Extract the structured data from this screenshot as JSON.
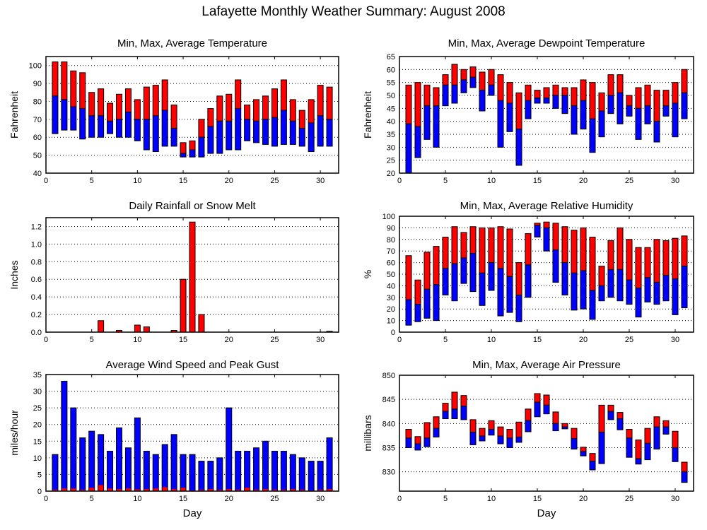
{
  "page_title": "Lafayette Monthly Weather Summary: August 2008",
  "colors": {
    "max_color": "#ff0000",
    "min_color": "#0000ff",
    "outline": "#000000"
  },
  "chart_data": [
    {
      "id": "temperature",
      "type": "bar",
      "subtype": "floating-range",
      "title": "Min, Max, Average Temperature",
      "xlabel": "",
      "ylabel": "Fahrenheit",
      "xlim": [
        0,
        32
      ],
      "ylim": [
        40,
        105
      ],
      "xticks": [
        0,
        5,
        10,
        15,
        20,
        25,
        30
      ],
      "yticks": [
        40,
        50,
        60,
        70,
        80,
        90,
        100
      ],
      "grid": true,
      "x": [
        1,
        2,
        3,
        4,
        5,
        6,
        7,
        8,
        9,
        10,
        11,
        12,
        13,
        14,
        15,
        16,
        17,
        18,
        19,
        20,
        21,
        22,
        23,
        24,
        25,
        26,
        27,
        28,
        29,
        30,
        31
      ],
      "series": [
        {
          "name": "max",
          "values": [
            102,
            102,
            97,
            96,
            85,
            87,
            79,
            84,
            87,
            81,
            88,
            89,
            92,
            78,
            57,
            58,
            70,
            76,
            83,
            84,
            92,
            78,
            81,
            83,
            87,
            92,
            81,
            75,
            81,
            89,
            88
          ]
        },
        {
          "name": "avg",
          "values": [
            83,
            81,
            77,
            76,
            72,
            72,
            69,
            70,
            74,
            70,
            70,
            72,
            75,
            65,
            51,
            53,
            60,
            66,
            69,
            69,
            76,
            70,
            69,
            70,
            71,
            75,
            69,
            65,
            68,
            72,
            70
          ]
        },
        {
          "name": "min",
          "values": [
            62,
            64,
            64,
            59,
            60,
            60,
            62,
            60,
            60,
            58,
            53,
            52,
            55,
            55,
            49,
            49,
            49,
            51,
            51,
            53,
            53,
            58,
            57,
            56,
            55,
            56,
            56,
            55,
            52,
            55,
            55
          ]
        }
      ]
    },
    {
      "id": "dewpoint",
      "type": "bar",
      "subtype": "floating-range",
      "title": "Min, Max, Average Dewpoint Temperature",
      "xlabel": "",
      "ylabel": "Fahrenheit",
      "xlim": [
        0,
        32
      ],
      "ylim": [
        20,
        65
      ],
      "xticks": [
        0,
        5,
        10,
        15,
        20,
        25,
        30
      ],
      "yticks": [
        20,
        25,
        30,
        35,
        40,
        45,
        50,
        55,
        60,
        65
      ],
      "grid": true,
      "x": [
        1,
        2,
        3,
        4,
        5,
        6,
        7,
        8,
        9,
        10,
        11,
        12,
        13,
        14,
        15,
        16,
        17,
        18,
        19,
        20,
        21,
        22,
        23,
        24,
        25,
        26,
        27,
        28,
        29,
        30,
        31
      ],
      "series": [
        {
          "name": "max",
          "values": [
            54,
            55,
            54,
            53,
            58,
            62,
            60,
            61,
            59,
            60,
            58,
            55,
            51,
            54,
            52,
            53,
            54,
            53,
            53,
            56,
            55,
            51,
            58,
            58,
            50,
            53,
            54,
            52,
            52,
            55,
            60
          ]
        },
        {
          "name": "avg",
          "values": [
            39,
            38,
            46,
            46,
            54,
            54,
            56,
            57,
            52,
            54,
            48,
            47,
            37,
            48,
            49,
            49,
            50,
            50,
            46,
            48,
            41,
            44,
            50,
            51,
            46,
            45,
            46,
            40,
            46,
            47,
            51
          ]
        },
        {
          "name": "min",
          "values": [
            20,
            26,
            33,
            30,
            46,
            47,
            51,
            53,
            44,
            50,
            30,
            36,
            23,
            41,
            47,
            47,
            45,
            43,
            35,
            37,
            28,
            34,
            43,
            39,
            42,
            33,
            39,
            32,
            42,
            34,
            41
          ]
        }
      ]
    },
    {
      "id": "rainfall",
      "type": "bar",
      "title": "Daily Rainfall or Snow Melt",
      "xlabel": "",
      "ylabel": "Inches",
      "xlim": [
        0,
        32
      ],
      "ylim": [
        0,
        1.3
      ],
      "xticks": [
        0,
        5,
        10,
        15,
        20,
        25,
        30
      ],
      "yticks": [
        "0.0",
        "0.2",
        "0.4",
        "0.6",
        "0.8",
        "1.0",
        "1.2"
      ],
      "grid": true,
      "x": [
        6,
        8,
        10,
        11,
        14,
        15,
        16,
        17,
        31
      ],
      "values": [
        0.13,
        0.02,
        0.08,
        0.06,
        0.02,
        0.6,
        1.25,
        0.2,
        0.01
      ]
    },
    {
      "id": "humidity",
      "type": "bar",
      "subtype": "floating-range",
      "title": "Min, Max, Average Relative Humidity",
      "xlabel": "",
      "ylabel": "%",
      "xlim": [
        0,
        32
      ],
      "ylim": [
        0,
        100
      ],
      "xticks": [
        0,
        5,
        10,
        15,
        20,
        25,
        30
      ],
      "yticks": [
        0,
        10,
        20,
        30,
        40,
        50,
        60,
        70,
        80,
        90,
        100
      ],
      "grid": true,
      "x": [
        1,
        2,
        3,
        4,
        5,
        6,
        7,
        8,
        9,
        10,
        11,
        12,
        13,
        14,
        15,
        16,
        17,
        18,
        19,
        20,
        21,
        22,
        23,
        24,
        25,
        26,
        27,
        28,
        29,
        30,
        31
      ],
      "series": [
        {
          "name": "max",
          "values": [
            66,
            45,
            69,
            74,
            82,
            91,
            86,
            91,
            90,
            90,
            91,
            89,
            60,
            85,
            94,
            95,
            94,
            91,
            88,
            90,
            82,
            57,
            79,
            90,
            80,
            73,
            73,
            80,
            79,
            81,
            83
          ]
        },
        {
          "name": "avg",
          "values": [
            28,
            24,
            37,
            41,
            55,
            59,
            64,
            68,
            51,
            60,
            55,
            48,
            32,
            58,
            92,
            90,
            71,
            60,
            51,
            53,
            36,
            40,
            54,
            54,
            45,
            38,
            47,
            43,
            49,
            46,
            57
          ]
        },
        {
          "name": "min",
          "values": [
            6,
            9,
            12,
            10,
            32,
            27,
            42,
            35,
            23,
            36,
            14,
            17,
            9,
            30,
            82,
            70,
            43,
            32,
            19,
            20,
            11,
            27,
            30,
            27,
            24,
            13,
            26,
            24,
            27,
            15,
            21
          ]
        }
      ]
    },
    {
      "id": "wind",
      "type": "bar",
      "title": "Average Wind Speed and Peak Gust",
      "xlabel": "Day",
      "ylabel": "miles/hour",
      "xlim": [
        0,
        32
      ],
      "ylim": [
        0,
        35
      ],
      "xticks": [
        0,
        5,
        10,
        15,
        20,
        25,
        30
      ],
      "yticks": [
        0,
        5,
        10,
        15,
        20,
        25,
        30,
        35
      ],
      "grid": true,
      "x": [
        1,
        2,
        3,
        4,
        5,
        6,
        7,
        8,
        9,
        10,
        11,
        12,
        13,
        14,
        15,
        16,
        17,
        18,
        19,
        20,
        21,
        22,
        23,
        24,
        25,
        26,
        27,
        28,
        29,
        30,
        31
      ],
      "series": [
        {
          "name": "peak gust",
          "values": [
            11,
            33,
            25,
            16,
            18,
            17,
            12,
            19,
            13,
            22,
            12,
            11,
            14,
            17,
            11,
            11,
            9,
            9,
            10,
            25,
            12,
            12,
            13,
            15,
            12,
            12,
            11,
            10,
            9,
            9,
            16
          ]
        },
        {
          "name": "average speed",
          "values": [
            0.4,
            0.8,
            0.8,
            0.4,
            1.0,
            1.8,
            0.8,
            0.6,
            0.8,
            0.5,
            0.6,
            0.8,
            1.2,
            0.6,
            1.0,
            0.2,
            0.4,
            0.6,
            0.4,
            0.6,
            0.4,
            1.0,
            0.4,
            0.6,
            0.4,
            0.4,
            0.6,
            0.4,
            0.2,
            0.4,
            0.6
          ]
        }
      ]
    },
    {
      "id": "pressure",
      "type": "bar",
      "subtype": "floating-range",
      "title": "Min, Max, Average Air Pressure",
      "xlabel": "Day",
      "ylabel": "millibars",
      "xlim": [
        0,
        32
      ],
      "ylim": [
        826,
        850
      ],
      "xticks": [
        0,
        5,
        10,
        15,
        20,
        25,
        30
      ],
      "yticks": [
        830,
        835,
        840,
        845,
        850
      ],
      "grid": true,
      "x": [
        1,
        2,
        3,
        4,
        5,
        6,
        7,
        8,
        9,
        10,
        11,
        12,
        13,
        14,
        15,
        16,
        17,
        18,
        19,
        20,
        21,
        22,
        23,
        24,
        25,
        26,
        27,
        28,
        29,
        30,
        31
      ],
      "series": [
        {
          "name": "max",
          "values": [
            838.8,
            837.3,
            840.2,
            841.4,
            844.2,
            846.5,
            845.8,
            840.8,
            839.0,
            840.6,
            839.3,
            838.8,
            840.3,
            843.0,
            846.2,
            845.9,
            842.4,
            840.0,
            839.0,
            835.1,
            833.8,
            843.8,
            843.8,
            842.3,
            838.8,
            836.6,
            839.0,
            841.4,
            840.6,
            838.4,
            832.0
          ]
        },
        {
          "name": "avg",
          "values": [
            837.0,
            835.8,
            837.0,
            839.0,
            842.5,
            843.0,
            843.6,
            838.2,
            837.4,
            838.8,
            837.4,
            837.0,
            837.2,
            840.6,
            844.4,
            843.8,
            840.0,
            839.3,
            836.9,
            834.2,
            832.2,
            838.2,
            842.5,
            841.0,
            837.0,
            832.7,
            835.9,
            839.3,
            839.3,
            835.0,
            830.0
          ]
        },
        {
          "name": "min",
          "values": [
            835.0,
            834.5,
            835.2,
            837.2,
            841.0,
            841.0,
            840.8,
            835.6,
            836.4,
            837.6,
            835.8,
            835.0,
            836.1,
            838.3,
            841.4,
            842.0,
            838.5,
            838.9,
            834.7,
            833.3,
            830.4,
            831.7,
            840.8,
            838.7,
            833.0,
            831.6,
            832.5,
            834.7,
            837.8,
            832.1,
            827.8
          ]
        }
      ]
    }
  ]
}
